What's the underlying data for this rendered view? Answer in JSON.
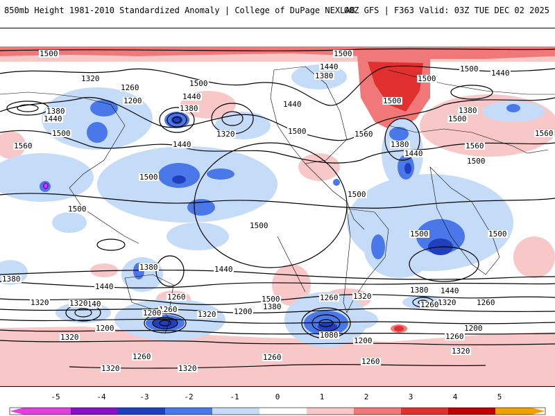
{
  "header": {
    "left": "850mb Height 1981-2010 Standardized Anomaly | College of DuPage NEXLAB",
    "right": "00Z GFS | F363 Valid: 03Z TUE DEC 02 2025"
  },
  "colors": {
    "minus5": "#e040e0",
    "minus4": "#8a0fc8",
    "minus3": "#1f3fbf",
    "minus2": "#4a78e8",
    "minus1": "#c5dcf8",
    "zero": "#ffffff",
    "plus1": "#f8c8c8",
    "plus2": "#f07878",
    "plus3": "#e03030",
    "plus4": "#c00000",
    "plus5": "#f0a000"
  },
  "legend": {
    "ticks": [
      "-5",
      "-4",
      "-3",
      "-2",
      "-1",
      "0",
      "1",
      "2",
      "3",
      "4",
      "5"
    ]
  },
  "contour_labels": {
    "a1": "1500",
    "a2": "1500",
    "a3": "1500",
    "a4": "1440",
    "a5": "1320",
    "a6": "1260",
    "a7": "1200",
    "a8": "1500",
    "a9": "1440",
    "a10": "1380",
    "a11": "1320",
    "a12": "1440",
    "a13": "1380",
    "a14": "1440",
    "a15": "1500",
    "a16": "1500",
    "a17": "1560",
    "a18": "1560",
    "a19": "1380",
    "a20": "1440",
    "a21": "1380",
    "a22": "1440",
    "a23": "1500",
    "a24": "1560",
    "a25": "1500",
    "a26": "1500",
    "a27": "1500",
    "a28": "1500",
    "a29": "1500",
    "a30": "1500",
    "a31": "1500",
    "a32": "1380",
    "a33": "1440",
    "a34": "1500",
    "a35": "1560",
    "a36": "1380",
    "a37": "1440",
    "a38": "1380",
    "a39": "1320",
    "a40": "1320",
    "a41": "1260",
    "a42": "1320",
    "a43": "1140",
    "a44": "1200",
    "a45": "1260",
    "a46": "1200",
    "a47": "1320",
    "a48": "1320",
    "a49": "1260",
    "a50": "1200",
    "a51": "1320",
    "a52": "1080",
    "a53": "1260",
    "a54": "1200",
    "a55": "1260",
    "a56": "1260",
    "a57": "1320",
    "a58": "1260",
    "a59": "1320",
    "a60": "1260",
    "a61": "1380",
    "a62": "1440",
    "a63": "1500",
    "a64": "1380",
    "a65": "1320",
    "a66": "1200",
    "a67": "1260",
    "a68": "1440",
    "a69": "1500"
  }
}
